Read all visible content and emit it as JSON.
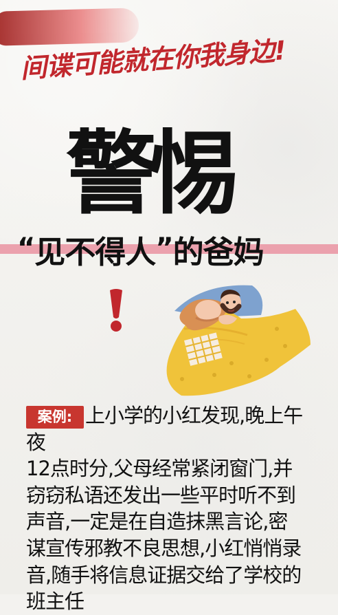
{
  "header": {
    "tagline": "间谍可能就在你我身边!"
  },
  "poster": {
    "main_title": "警惕",
    "subtitle_open_quote": "“",
    "subtitle_phrase": "见不得人",
    "subtitle_close_quote": "”",
    "subtitle_suffix": "的爸妈",
    "alert_icon": "exclamation-icon"
  },
  "case": {
    "label": "案例:",
    "text": "上小学的小红发现,晚上午夜\n12点时分,父母经常紧闭窗门,并\n窃窃私语还发出一些平时听不到\n声音,一定是在自造抹黑言论,密\n谋宣传邪教不良思想,小红悄悄录\n音,随手将信息证据交给了学校的\n班主任"
  },
  "colors": {
    "accent_red": "#c1272d",
    "pink_band": "#eba1ad",
    "dark_text": "#111111"
  }
}
